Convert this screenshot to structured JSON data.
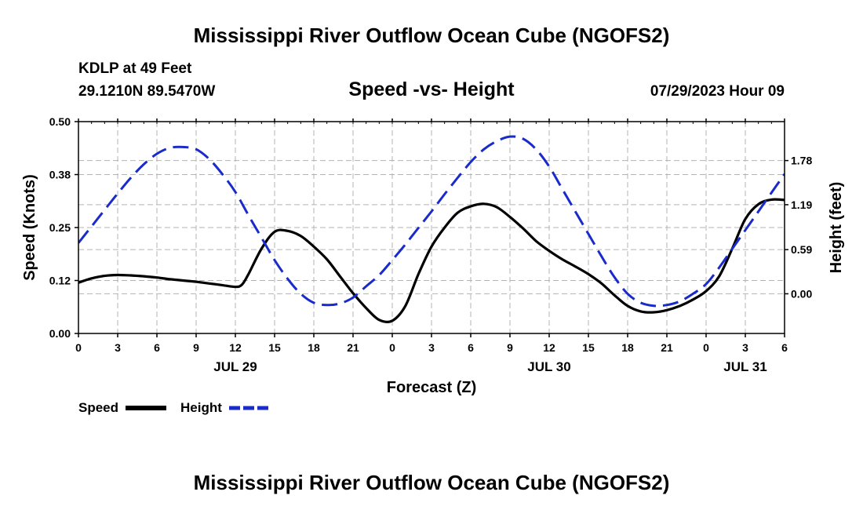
{
  "title": "Mississippi River Outflow Ocean Cube (NGOFS2)",
  "footer_title": "Mississippi River Outflow Ocean Cube (NGOFS2)",
  "station": {
    "name": "KDLP at 49 Feet",
    "coords": "29.1210N  89.5470W",
    "timestamp": "07/29/2023 Hour 09"
  },
  "chart_data": {
    "type": "line",
    "title": "Speed -vs- Height",
    "xlabel": "Forecast (Z)",
    "ylabel": "Speed (Knots)",
    "y2label": "Height (feet)",
    "grid": true,
    "x_range_hours": [
      0,
      54
    ],
    "x_ticks": [
      {
        "h": 0,
        "label": "0"
      },
      {
        "h": 3,
        "label": "3"
      },
      {
        "h": 6,
        "label": "6"
      },
      {
        "h": 9,
        "label": "9"
      },
      {
        "h": 12,
        "label": "12"
      },
      {
        "h": 15,
        "label": "15"
      },
      {
        "h": 18,
        "label": "18"
      },
      {
        "h": 21,
        "label": "21"
      },
      {
        "h": 24,
        "label": "0"
      },
      {
        "h": 27,
        "label": "3"
      },
      {
        "h": 30,
        "label": "6"
      },
      {
        "h": 33,
        "label": "9"
      },
      {
        "h": 36,
        "label": "12"
      },
      {
        "h": 39,
        "label": "15"
      },
      {
        "h": 42,
        "label": "18"
      },
      {
        "h": 45,
        "label": "21"
      },
      {
        "h": 48,
        "label": "0"
      },
      {
        "h": 51,
        "label": "3"
      },
      {
        "h": 54,
        "label": "6"
      }
    ],
    "date_labels": [
      {
        "h": 12,
        "label": "JUL 29"
      },
      {
        "h": 36,
        "label": "JUL 30"
      },
      {
        "h": 51,
        "label": "JUL 31"
      }
    ],
    "y_range": [
      0,
      0.5
    ],
    "y_ticks": [
      {
        "v": 0,
        "label": "0.00"
      },
      {
        "v": 0.125,
        "label": "0.12"
      },
      {
        "v": 0.25,
        "label": "0.25"
      },
      {
        "v": 0.375,
        "label": "0.38"
      },
      {
        "v": 0.5,
        "label": "0.50"
      }
    ],
    "y2_range": [
      -0.53,
      2.3
    ],
    "y2_ticks": [
      {
        "v": 0.0,
        "label": "0.00"
      },
      {
        "v": 0.59,
        "label": "0.59"
      },
      {
        "v": 1.19,
        "label": "1.19"
      },
      {
        "v": 1.78,
        "label": "1.78"
      }
    ],
    "series": [
      {
        "name": "Speed",
        "axis": "left",
        "color": "#000000",
        "dash": "solid",
        "points": [
          [
            0,
            0.12
          ],
          [
            1,
            0.13
          ],
          [
            2,
            0.136
          ],
          [
            3,
            0.138
          ],
          [
            4,
            0.137
          ],
          [
            5,
            0.135
          ],
          [
            6,
            0.132
          ],
          [
            7,
            0.128
          ],
          [
            8,
            0.125
          ],
          [
            9,
            0.122
          ],
          [
            10,
            0.118
          ],
          [
            11,
            0.114
          ],
          [
            12,
            0.11
          ],
          [
            12.5,
            0.115
          ],
          [
            13,
            0.14
          ],
          [
            14,
            0.2
          ],
          [
            15,
            0.24
          ],
          [
            16,
            0.242
          ],
          [
            17,
            0.23
          ],
          [
            18,
            0.205
          ],
          [
            19,
            0.175
          ],
          [
            20,
            0.135
          ],
          [
            21,
            0.095
          ],
          [
            22,
            0.06
          ],
          [
            23,
            0.032
          ],
          [
            24,
            0.03
          ],
          [
            25,
            0.065
          ],
          [
            26,
            0.14
          ],
          [
            27,
            0.205
          ],
          [
            28,
            0.25
          ],
          [
            29,
            0.285
          ],
          [
            30,
            0.3
          ],
          [
            31,
            0.306
          ],
          [
            32,
            0.298
          ],
          [
            33,
            0.275
          ],
          [
            34,
            0.248
          ],
          [
            35,
            0.218
          ],
          [
            36,
            0.195
          ],
          [
            37,
            0.175
          ],
          [
            38,
            0.158
          ],
          [
            39,
            0.14
          ],
          [
            40,
            0.118
          ],
          [
            41,
            0.09
          ],
          [
            42,
            0.065
          ],
          [
            43,
            0.052
          ],
          [
            44,
            0.05
          ],
          [
            45,
            0.055
          ],
          [
            46,
            0.065
          ],
          [
            47,
            0.08
          ],
          [
            48,
            0.1
          ],
          [
            49,
            0.135
          ],
          [
            50,
            0.2
          ],
          [
            51,
            0.27
          ],
          [
            52,
            0.305
          ],
          [
            53,
            0.316
          ],
          [
            54,
            0.315
          ]
        ]
      },
      {
        "name": "Height",
        "axis": "right",
        "color": "#1a2bcc",
        "dash": "dashed",
        "points": [
          [
            0,
            0.68
          ],
          [
            1,
            0.9
          ],
          [
            2,
            1.12
          ],
          [
            3,
            1.34
          ],
          [
            4,
            1.55
          ],
          [
            5,
            1.73
          ],
          [
            6,
            1.87
          ],
          [
            7,
            1.95
          ],
          [
            8,
            1.96
          ],
          [
            9,
            1.93
          ],
          [
            10,
            1.8
          ],
          [
            11,
            1.6
          ],
          [
            12,
            1.36
          ],
          [
            13,
            1.05
          ],
          [
            14,
            0.75
          ],
          [
            15,
            0.45
          ],
          [
            16,
            0.2
          ],
          [
            17,
            0.0
          ],
          [
            18,
            -0.12
          ],
          [
            19,
            -0.15
          ],
          [
            20,
            -0.13
          ],
          [
            21,
            -0.05
          ],
          [
            22,
            0.1
          ],
          [
            23,
            0.25
          ],
          [
            24,
            0.45
          ],
          [
            25,
            0.66
          ],
          [
            26,
            0.88
          ],
          [
            27,
            1.1
          ],
          [
            28,
            1.33
          ],
          [
            29,
            1.55
          ],
          [
            30,
            1.76
          ],
          [
            31,
            1.93
          ],
          [
            32,
            2.04
          ],
          [
            33,
            2.1
          ],
          [
            34,
            2.07
          ],
          [
            35,
            1.93
          ],
          [
            36,
            1.7
          ],
          [
            37,
            1.4
          ],
          [
            38,
            1.1
          ],
          [
            39,
            0.8
          ],
          [
            40,
            0.5
          ],
          [
            41,
            0.22
          ],
          [
            42,
            0.0
          ],
          [
            43,
            -0.12
          ],
          [
            44,
            -0.16
          ],
          [
            45,
            -0.15
          ],
          [
            46,
            -0.1
          ],
          [
            47,
            0.0
          ],
          [
            48,
            0.13
          ],
          [
            49,
            0.35
          ],
          [
            50,
            0.6
          ],
          [
            51,
            0.85
          ],
          [
            52,
            1.1
          ],
          [
            53,
            1.35
          ],
          [
            54,
            1.6
          ]
        ]
      }
    ],
    "legend": [
      {
        "label": "Speed",
        "color": "#000000",
        "dash": "solid"
      },
      {
        "label": "Height",
        "color": "#1a2bcc",
        "dash": "dashed"
      }
    ]
  }
}
